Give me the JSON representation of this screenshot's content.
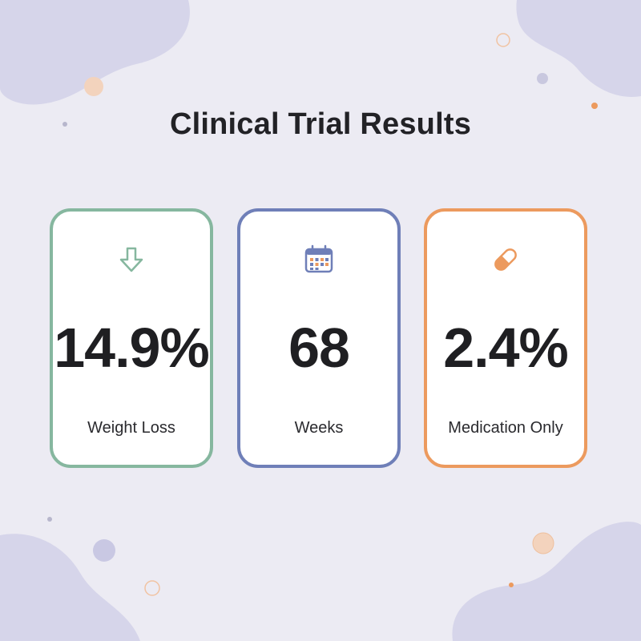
{
  "title": "Clinical Trial Results",
  "colors": {
    "background": "#ecebf3",
    "blob": "#d6d5ea",
    "accent_green": "#86b79f",
    "accent_blue": "#6f7fb8",
    "accent_orange": "#ec9a5e"
  },
  "cards": [
    {
      "value": "14.9%",
      "label": "Weight Loss",
      "icon": "arrow-down-icon",
      "color": "#86b79f"
    },
    {
      "value": "68",
      "label": "Weeks",
      "icon": "calendar-icon",
      "color": "#6f7fb8"
    },
    {
      "value": "2.4%",
      "label": "Medication Only",
      "icon": "pill-icon",
      "color": "#ec9a5e"
    }
  ]
}
